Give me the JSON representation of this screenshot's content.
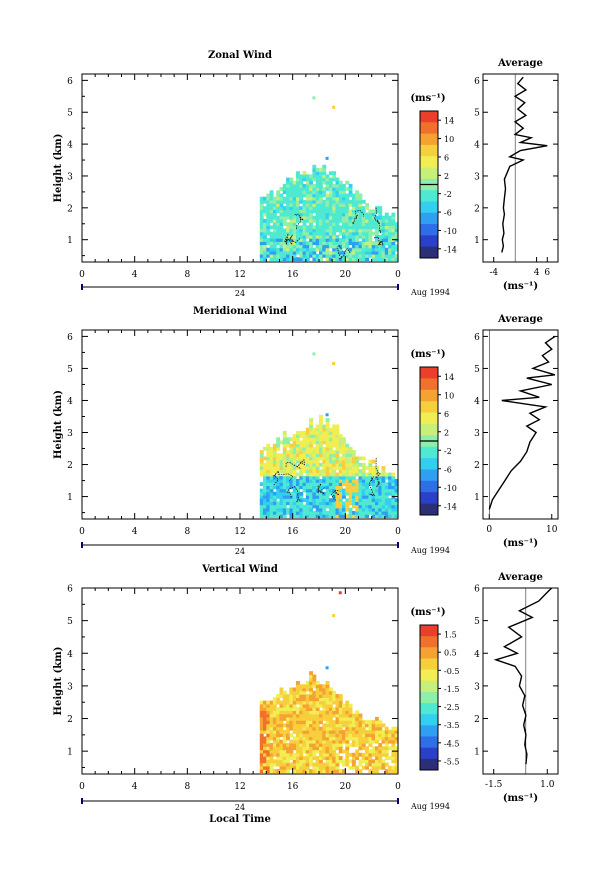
{
  "colors": {
    "scale": [
      "#2b2f78",
      "#2b40c8",
      "#2e6ee6",
      "#2f9ff2",
      "#33cfee",
      "#4fe9d2",
      "#8ef0a8",
      "#c8f078",
      "#f0ee52",
      "#f7cf3c",
      "#f5a232",
      "#f0702c",
      "#ea3f2a"
    ],
    "zero_contour": "#000000"
  },
  "chart_data": [
    {
      "type": "heatmap",
      "title": "Zonal Wind",
      "ylabel": "Height (km)",
      "xlabel": "",
      "xlim": [
        0,
        24
      ],
      "ylim": [
        0.3,
        6.2
      ],
      "xticks": [
        "0",
        "4",
        "8",
        "12",
        "16",
        "20",
        "0"
      ],
      "yticks": [
        "1",
        "2",
        "3",
        "4",
        "5",
        "6"
      ],
      "date_label": "24",
      "date_suffix": "Aug 1994",
      "colorbar": {
        "unit": "(ms⁻¹)",
        "ticks": [
          "14",
          "10",
          "6",
          "2",
          "-2",
          "-6",
          "-10",
          "-14"
        ],
        "range": [
          -16,
          16
        ]
      },
      "field_extent": {
        "x_start": 13.5,
        "x_end": 24,
        "top_by_hour": [
          [
            13.5,
            2.3
          ],
          [
            14.5,
            2.5
          ],
          [
            15.5,
            2.9
          ],
          [
            16.5,
            3.0
          ],
          [
            17.3,
            3.2
          ],
          [
            18.2,
            3.3
          ],
          [
            19.3,
            2.9
          ],
          [
            20.5,
            2.5
          ],
          [
            21.5,
            2.0
          ],
          [
            23,
            1.8
          ],
          [
            24,
            1.6
          ]
        ]
      },
      "field_values": "mostly -2 to 6 m/s with zero contours",
      "average_profile": {
        "title": "Average",
        "xlabel": "(ms⁻¹)",
        "xticks": [
          "-4",
          "4",
          "6"
        ],
        "xlim": [
          -6,
          8
        ],
        "yticks": [
          "1",
          "2",
          "3",
          "4",
          "5",
          "6"
        ],
        "zero_line": true,
        "points": [
          [
            -2.5,
            0.6
          ],
          [
            -2.2,
            0.8
          ],
          [
            -2.4,
            1.0
          ],
          [
            -2.1,
            1.2
          ],
          [
            -2.3,
            1.5
          ],
          [
            -2.0,
            1.8
          ],
          [
            -2.2,
            2.0
          ],
          [
            -2.0,
            2.3
          ],
          [
            -1.8,
            2.6
          ],
          [
            -2.0,
            2.9
          ],
          [
            -1.5,
            3.1
          ],
          [
            -1.0,
            3.3
          ],
          [
            1.5,
            3.5
          ],
          [
            -1.0,
            3.6
          ],
          [
            1.0,
            3.8
          ],
          [
            6.0,
            3.95
          ],
          [
            1.0,
            4.05
          ],
          [
            3.0,
            4.2
          ],
          [
            0.0,
            4.3
          ],
          [
            1.5,
            4.5
          ],
          [
            0.0,
            4.7
          ],
          [
            2.0,
            4.9
          ],
          [
            0.5,
            5.1
          ],
          [
            1.8,
            5.3
          ],
          [
            0.0,
            5.5
          ],
          [
            2.0,
            5.7
          ],
          [
            0.5,
            5.9
          ],
          [
            1.5,
            6.1
          ]
        ]
      }
    },
    {
      "type": "heatmap",
      "title": "Meridional Wind",
      "ylabel": "Height (km)",
      "xlabel": "",
      "xlim": [
        0,
        24
      ],
      "ylim": [
        0.3,
        6.2
      ],
      "xticks": [
        "0",
        "4",
        "8",
        "12",
        "16",
        "20",
        "0"
      ],
      "yticks": [
        "1",
        "2",
        "3",
        "4",
        "5",
        "6"
      ],
      "date_label": "24",
      "date_suffix": "Aug 1994",
      "colorbar": {
        "unit": "(ms⁻¹)",
        "ticks": [
          "14",
          "10",
          "6",
          "2",
          "-2",
          "-6",
          "-10",
          "-14"
        ],
        "range": [
          -16,
          16
        ]
      },
      "field_extent": {
        "x_start": 13.5,
        "x_end": 24,
        "top_by_hour": [
          [
            13.5,
            2.4
          ],
          [
            14.5,
            2.7
          ],
          [
            15.5,
            2.9
          ],
          [
            16.5,
            3.1
          ],
          [
            17.5,
            3.3
          ],
          [
            18.2,
            3.4
          ],
          [
            19.5,
            3.0
          ],
          [
            20.5,
            2.5
          ],
          [
            21.5,
            2.0
          ],
          [
            23,
            1.8
          ],
          [
            24,
            1.6
          ]
        ]
      },
      "field_values": "positive 2 to 10 m/s aloft, near zero below 1.5 km",
      "average_profile": {
        "title": "Average",
        "xlabel": "(ms⁻¹)",
        "xticks": [
          "0",
          "10"
        ],
        "xlim": [
          -1,
          11
        ],
        "yticks": [
          "1",
          "2",
          "3",
          "4",
          "5",
          "6"
        ],
        "zero_line": true,
        "points": [
          [
            0.0,
            0.6
          ],
          [
            0.5,
            0.9
          ],
          [
            1.5,
            1.2
          ],
          [
            2.5,
            1.5
          ],
          [
            3.5,
            1.8
          ],
          [
            5.0,
            2.1
          ],
          [
            6.0,
            2.4
          ],
          [
            6.5,
            2.7
          ],
          [
            7.5,
            3.0
          ],
          [
            6.0,
            3.2
          ],
          [
            8.0,
            3.4
          ],
          [
            6.5,
            3.6
          ],
          [
            9.0,
            3.8
          ],
          [
            2.0,
            4.0
          ],
          [
            8.0,
            4.1
          ],
          [
            5.0,
            4.3
          ],
          [
            10.0,
            4.5
          ],
          [
            6.0,
            4.7
          ],
          [
            10.5,
            4.8
          ],
          [
            7.0,
            5.0
          ],
          [
            9.5,
            5.2
          ],
          [
            8.5,
            5.4
          ],
          [
            10.0,
            5.6
          ],
          [
            9.0,
            5.8
          ],
          [
            10.5,
            6.0
          ]
        ]
      }
    },
    {
      "type": "heatmap",
      "title": "Vertical Wind",
      "ylabel": "Height (km)",
      "xlabel": "Local Time",
      "xlim": [
        0,
        24
      ],
      "ylim": [
        0.3,
        6.0
      ],
      "xticks": [
        "0",
        "4",
        "8",
        "12",
        "16",
        "20",
        "0"
      ],
      "yticks": [
        "1",
        "2",
        "3",
        "4",
        "5",
        "6"
      ],
      "date_label": "24",
      "date_suffix": "Aug 1994",
      "colorbar": {
        "unit": "(ms⁻¹)",
        "ticks": [
          "1.5",
          "0.5",
          "-0.5",
          "-1.5",
          "-2.5",
          "-3.5",
          "-4.5",
          "-5.5"
        ],
        "range": [
          -6.0,
          2.0
        ]
      },
      "field_extent": {
        "x_start": 13.5,
        "x_end": 24,
        "top_by_hour": [
          [
            13.5,
            2.5
          ],
          [
            14.5,
            2.7
          ],
          [
            15.5,
            2.9
          ],
          [
            16.5,
            3.0
          ],
          [
            17.5,
            3.3
          ],
          [
            18.5,
            3.0
          ],
          [
            19.5,
            2.5
          ],
          [
            20.5,
            2.2
          ],
          [
            21.5,
            2.0
          ],
          [
            23,
            1.8
          ],
          [
            24,
            1.6
          ]
        ]
      },
      "field_values": "mostly 0.5 to 1.5 m/s (yellow-orange)",
      "average_profile": {
        "title": "Average",
        "xlabel": "(ms⁻¹)",
        "xticks": [
          "-1.5",
          "1.0"
        ],
        "xlim": [
          -2.0,
          1.5
        ],
        "yticks": [
          "1",
          "2",
          "3",
          "4",
          "5",
          "6"
        ],
        "zero_line": true,
        "points": [
          [
            0.0,
            0.6
          ],
          [
            0.05,
            0.9
          ],
          [
            -0.05,
            1.2
          ],
          [
            0.0,
            1.5
          ],
          [
            -0.1,
            1.8
          ],
          [
            0.0,
            2.1
          ],
          [
            -0.15,
            2.4
          ],
          [
            -0.05,
            2.7
          ],
          [
            -0.3,
            3.0
          ],
          [
            -0.2,
            3.3
          ],
          [
            -0.5,
            3.6
          ],
          [
            -1.4,
            3.8
          ],
          [
            -0.4,
            4.0
          ],
          [
            -1.0,
            4.2
          ],
          [
            -0.2,
            4.5
          ],
          [
            -0.8,
            4.8
          ],
          [
            0.3,
            5.1
          ],
          [
            -0.3,
            5.3
          ],
          [
            0.6,
            5.6
          ],
          [
            0.9,
            5.8
          ],
          [
            1.2,
            6.0
          ]
        ]
      }
    }
  ]
}
